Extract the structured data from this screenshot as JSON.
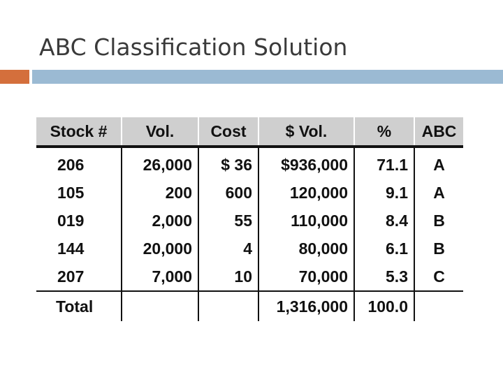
{
  "slide": {
    "title": "ABC Classification Solution",
    "colors": {
      "accent_orange": "#d46f3c",
      "accent_blue": "#9bbad3",
      "header_fill": "#cfcfcf",
      "text": "#111111"
    }
  },
  "table": {
    "headers": [
      "Stock #",
      "Vol.",
      "Cost",
      "$ Vol.",
      "%",
      "ABC"
    ],
    "rows": [
      {
        "stock": "206",
        "vol": "26,000",
        "cost": "$ 36",
        "dollar_vol": "$936,000",
        "pct": "71.1",
        "abc": "A"
      },
      {
        "stock": "105",
        "vol": "200",
        "cost": "600",
        "dollar_vol": "120,000",
        "pct": "9.1",
        "abc": "A"
      },
      {
        "stock": "019",
        "vol": "2,000",
        "cost": "55",
        "dollar_vol": "110,000",
        "pct": "8.4",
        "abc": "B"
      },
      {
        "stock": "144",
        "vol": "20,000",
        "cost": "4",
        "dollar_vol": "80,000",
        "pct": "6.1",
        "abc": "B"
      },
      {
        "stock": "207",
        "vol": "7,000",
        "cost": "10",
        "dollar_vol": "70,000",
        "pct": "5.3",
        "abc": "C"
      }
    ],
    "total": {
      "label": "Total",
      "dollar_vol": "1,316,000",
      "pct": "100.0"
    }
  }
}
